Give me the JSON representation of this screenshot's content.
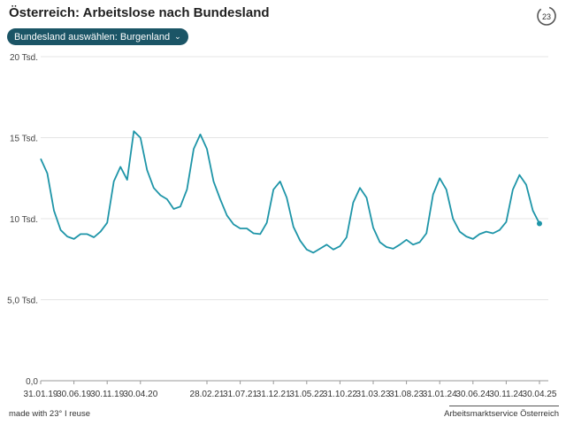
{
  "header": {
    "title": "Österreich: Arbeitslose nach Bundesland",
    "logo_icon": "23-degrees-logo-icon",
    "dropdown_label": "Bundesland auswählen: Burgenland"
  },
  "footer": {
    "made_with": "made with 23° I reuse",
    "source": "Arbeitsmarktservice Österreich"
  },
  "colors": {
    "line": "#1e95a8",
    "accent": "#1b5566",
    "grid": "#e4e4e4"
  },
  "chart_data": {
    "type": "line",
    "title": "Österreich: Arbeitslose nach Bundesland",
    "ylim": [
      0,
      20000
    ],
    "yticks": [
      {
        "value": 0,
        "label": "0,0"
      },
      {
        "value": 5000,
        "label": "5,0 Tsd."
      },
      {
        "value": 10000,
        "label": "10 Tsd."
      },
      {
        "value": 15000,
        "label": "15 Tsd."
      },
      {
        "value": 20000,
        "label": "20 Tsd."
      }
    ],
    "xticks": [
      "31.01.19",
      "30.06.19",
      "30.11.19",
      "30.04.20",
      "28.02.21",
      "31.07.21",
      "31.12.21",
      "31.05.22",
      "31.10.22",
      "31.03.23",
      "31.08.23",
      "31.01.24",
      "30.06.24",
      "30.11.24",
      "30.04.25"
    ],
    "xtick_month_index": [
      0,
      5,
      10,
      15,
      25,
      30,
      35,
      40,
      45,
      50,
      55,
      60,
      65,
      70,
      75
    ],
    "grid": true,
    "series": [
      {
        "values": [
          13700,
          12800,
          10500,
          9300,
          8900,
          8750,
          9050,
          9050,
          8850,
          9200,
          9750,
          12300,
          13200,
          12400,
          15400,
          15000,
          13000,
          11900,
          11450,
          11200,
          10600,
          10750,
          11800,
          14300,
          15200,
          14300,
          12300,
          11200,
          10200,
          9650,
          9400,
          9400,
          9100,
          9050,
          9750,
          11800,
          12300,
          11300,
          9500,
          8650,
          8100,
          7900,
          8150,
          8400,
          8100,
          8300,
          8850,
          11000,
          11900,
          11300,
          9450,
          8550,
          8250,
          8150,
          8400,
          8700,
          8400,
          8550,
          9100,
          11500,
          12500,
          11800,
          10000,
          9200,
          8900,
          8750,
          9050,
          9200,
          9100,
          9300,
          9800,
          11800,
          12700,
          12100,
          10500,
          9700
        ]
      }
    ]
  }
}
